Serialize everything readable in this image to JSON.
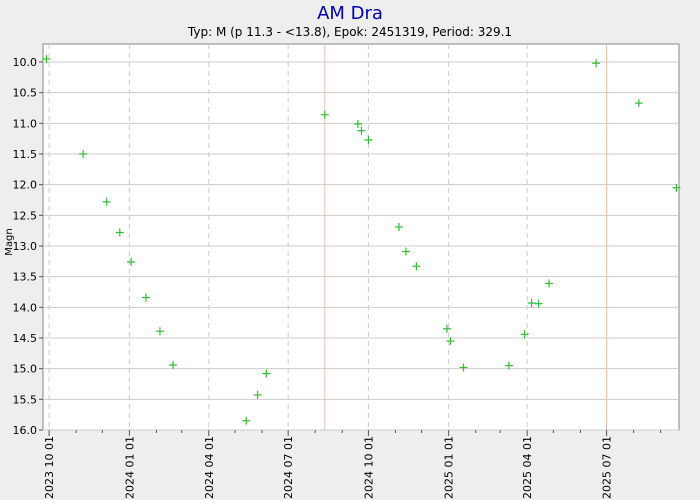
{
  "chart_data": {
    "type": "scatter",
    "title": "AM Dra",
    "subtitle": "Typ: M (p 11.3 - <13.8), Epok: 2451319, Period: 329.1",
    "xlabel": "",
    "ylabel": "Magn",
    "y_inverted": true,
    "ylim": [
      10.0,
      16.0
    ],
    "yticks": [
      "10.0",
      "10.5",
      "11.0",
      "11.5",
      "12.0",
      "12.5",
      "13.0",
      "13.5",
      "14.0",
      "14.5",
      "15.0",
      "15.5",
      "16.0"
    ],
    "xlim": [
      "2023-09-24",
      "2025-09-22"
    ],
    "xticks": [
      "2023 10 01",
      "2024 01 01",
      "2024 04 01",
      "2024 07 01",
      "2024 10 01",
      "2025 01 01",
      "2025 04 01",
      "2025 07 01"
    ],
    "minor_xticks": [
      "2023-11-01",
      "2023-12-01",
      "2024-02-01",
      "2024-03-01",
      "2024-05-01",
      "2024-06-01",
      "2024-08-01",
      "2024-09-01",
      "2024-11-01",
      "2024-12-01",
      "2025-02-01",
      "2025-03-01",
      "2025-05-01",
      "2025-06-01",
      "2025-08-01",
      "2025-09-01"
    ],
    "vertical_markers": [
      "2024-08-12",
      "2025-07-01"
    ],
    "grid": true,
    "marker": "+",
    "colors": {
      "points": "#33bb33",
      "marker_line": "#e8bfa8",
      "title": "#0000aa",
      "plot_background": "#ffffff",
      "grid": "#cccccc"
    },
    "series": [
      {
        "points": [
          {
            "x": "2023-09-28",
            "y": 9.95
          },
          {
            "x": "2023-11-09",
            "y": 11.5
          },
          {
            "x": "2023-12-06",
            "y": 12.28
          },
          {
            "x": "2023-12-21",
            "y": 12.78
          },
          {
            "x": "2024-01-03",
            "y": 13.26
          },
          {
            "x": "2024-01-20",
            "y": 13.84
          },
          {
            "x": "2024-02-05",
            "y": 14.39
          },
          {
            "x": "2024-02-20",
            "y": 14.94
          },
          {
            "x": "2024-05-14",
            "y": 15.85
          },
          {
            "x": "2024-05-27",
            "y": 15.43
          },
          {
            "x": "2024-06-06",
            "y": 15.08
          },
          {
            "x": "2024-08-12",
            "y": 10.86
          },
          {
            "x": "2024-09-19",
            "y": 11.01
          },
          {
            "x": "2024-09-23",
            "y": 11.12
          },
          {
            "x": "2024-10-01",
            "y": 11.27
          },
          {
            "x": "2024-11-05",
            "y": 12.69
          },
          {
            "x": "2024-11-13",
            "y": 13.09
          },
          {
            "x": "2024-11-25",
            "y": 13.33
          },
          {
            "x": "2024-12-30",
            "y": 14.35
          },
          {
            "x": "2025-01-03",
            "y": 14.55
          },
          {
            "x": "2025-01-18",
            "y": 14.98
          },
          {
            "x": "2025-03-11",
            "y": 14.95
          },
          {
            "x": "2025-03-29",
            "y": 14.44
          },
          {
            "x": "2025-04-06",
            "y": 13.93
          },
          {
            "x": "2025-04-14",
            "y": 13.94
          },
          {
            "x": "2025-04-26",
            "y": 13.61
          },
          {
            "x": "2025-06-19",
            "y": 10.02
          },
          {
            "x": "2025-08-07",
            "y": 10.67
          },
          {
            "x": "2025-09-19",
            "y": 12.05
          }
        ]
      }
    ]
  }
}
